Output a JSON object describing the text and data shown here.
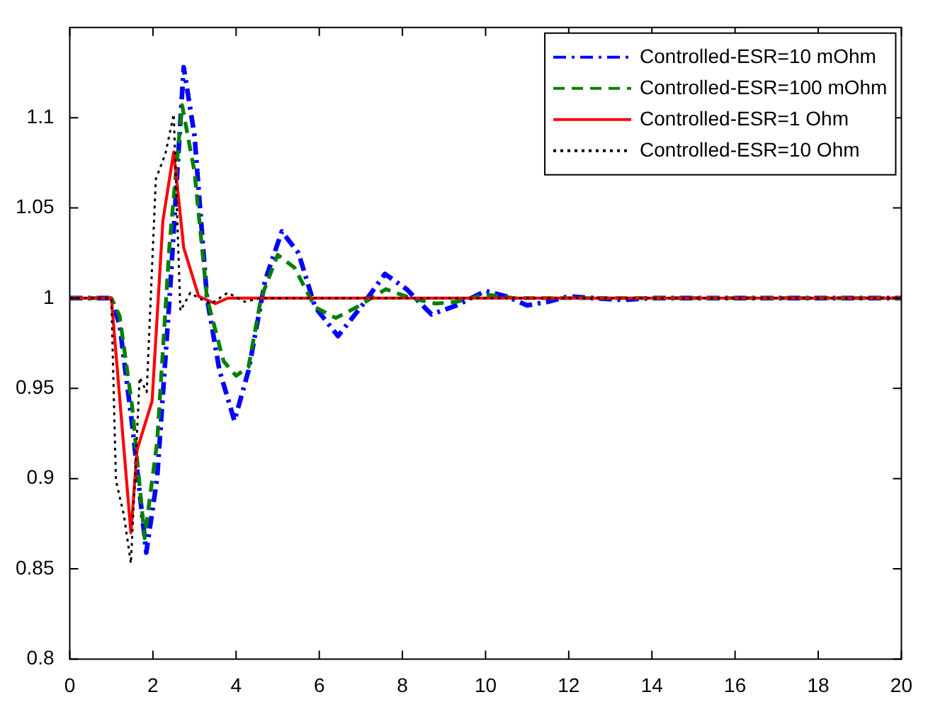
{
  "chart_data": {
    "type": "line",
    "xlim": [
      0,
      20
    ],
    "ylim": [
      0.8,
      1.15
    ],
    "xticks": [
      0,
      2,
      4,
      6,
      8,
      10,
      12,
      14,
      16,
      18,
      20
    ],
    "yticks": [
      0.8,
      0.85,
      0.9,
      0.95,
      1,
      1.05,
      1.1
    ],
    "legend": "top right",
    "marker": "none",
    "series": [
      {
        "name": "Controlled-ESR=10 mOhm",
        "color": "#0000ff",
        "line_style": "dashdot",
        "x": [
          0,
          1,
          1.2,
          1.5,
          1.84,
          2.1,
          2.4,
          2.74,
          3.0,
          3.3,
          3.6,
          3.96,
          4.3,
          4.7,
          5.1,
          5.5,
          5.9,
          6.45,
          7.0,
          7.58,
          8.1,
          8.7,
          9.3,
          10.0,
          10.5,
          11.0,
          11.5,
          12.0,
          12.6,
          13.3,
          14,
          20
        ],
        "values": [
          1,
          1,
          0.985,
          0.93,
          0.859,
          0.9,
          1.0,
          1.128,
          1.09,
          1.0,
          0.96,
          0.932,
          0.96,
          1.01,
          1.037,
          1.025,
          0.995,
          0.979,
          0.995,
          1.0134,
          1.005,
          0.991,
          0.996,
          1.004,
          1.001,
          0.996,
          0.998,
          1.001,
          1.0,
          0.999,
          1,
          1
        ]
      },
      {
        "name": "Controlled-ESR=100 mOhm",
        "color": "#008000",
        "line_style": "dashed",
        "x": [
          0,
          1,
          1.2,
          1.5,
          1.8,
          2.1,
          2.4,
          2.7,
          3.0,
          3.3,
          3.7,
          4.0,
          4.3,
          4.6,
          5.0,
          5.4,
          5.9,
          6.4,
          6.9,
          7.6,
          8.2,
          8.8,
          9.3,
          10.0,
          10.7,
          11.5,
          20
        ],
        "values": [
          1,
          1,
          0.99,
          0.94,
          0.867,
          0.92,
          1.03,
          1.107,
          1.07,
          1.0,
          0.965,
          0.957,
          0.962,
          1.0,
          1.024,
          1.017,
          0.995,
          0.989,
          0.995,
          1.005,
          1.0,
          0.997,
          0.998,
          1.002,
          1.0,
          1.0,
          1
        ]
      },
      {
        "name": "Controlled-ESR=1 Ohm",
        "color": "#ff0000",
        "line_style": "solid",
        "x": [
          0,
          1,
          1.47,
          1.62,
          1.98,
          2.24,
          2.5,
          2.74,
          3.1,
          3.5,
          3.8,
          4.2,
          20
        ],
        "values": [
          1,
          1,
          0.87,
          0.916,
          0.943,
          1.043,
          1.081,
          1.028,
          1.001,
          0.997,
          1.0,
          1.0,
          1
        ]
      },
      {
        "name": "Controlled-ESR=10 Ohm",
        "color": "#000000",
        "line_style": "dotted",
        "x": [
          0,
          1,
          1.11,
          1.3,
          1.47,
          1.68,
          1.85,
          2.07,
          2.3,
          2.5,
          2.66,
          2.9,
          3.1,
          3.4,
          3.8,
          4.2,
          4.6,
          20
        ],
        "values": [
          1,
          1,
          0.899,
          0.88,
          0.853,
          0.956,
          0.948,
          1.066,
          1.08,
          1.102,
          0.993,
          1.003,
          1.0,
          0.997,
          1.003,
          0.998,
          1.0,
          1
        ]
      }
    ]
  }
}
